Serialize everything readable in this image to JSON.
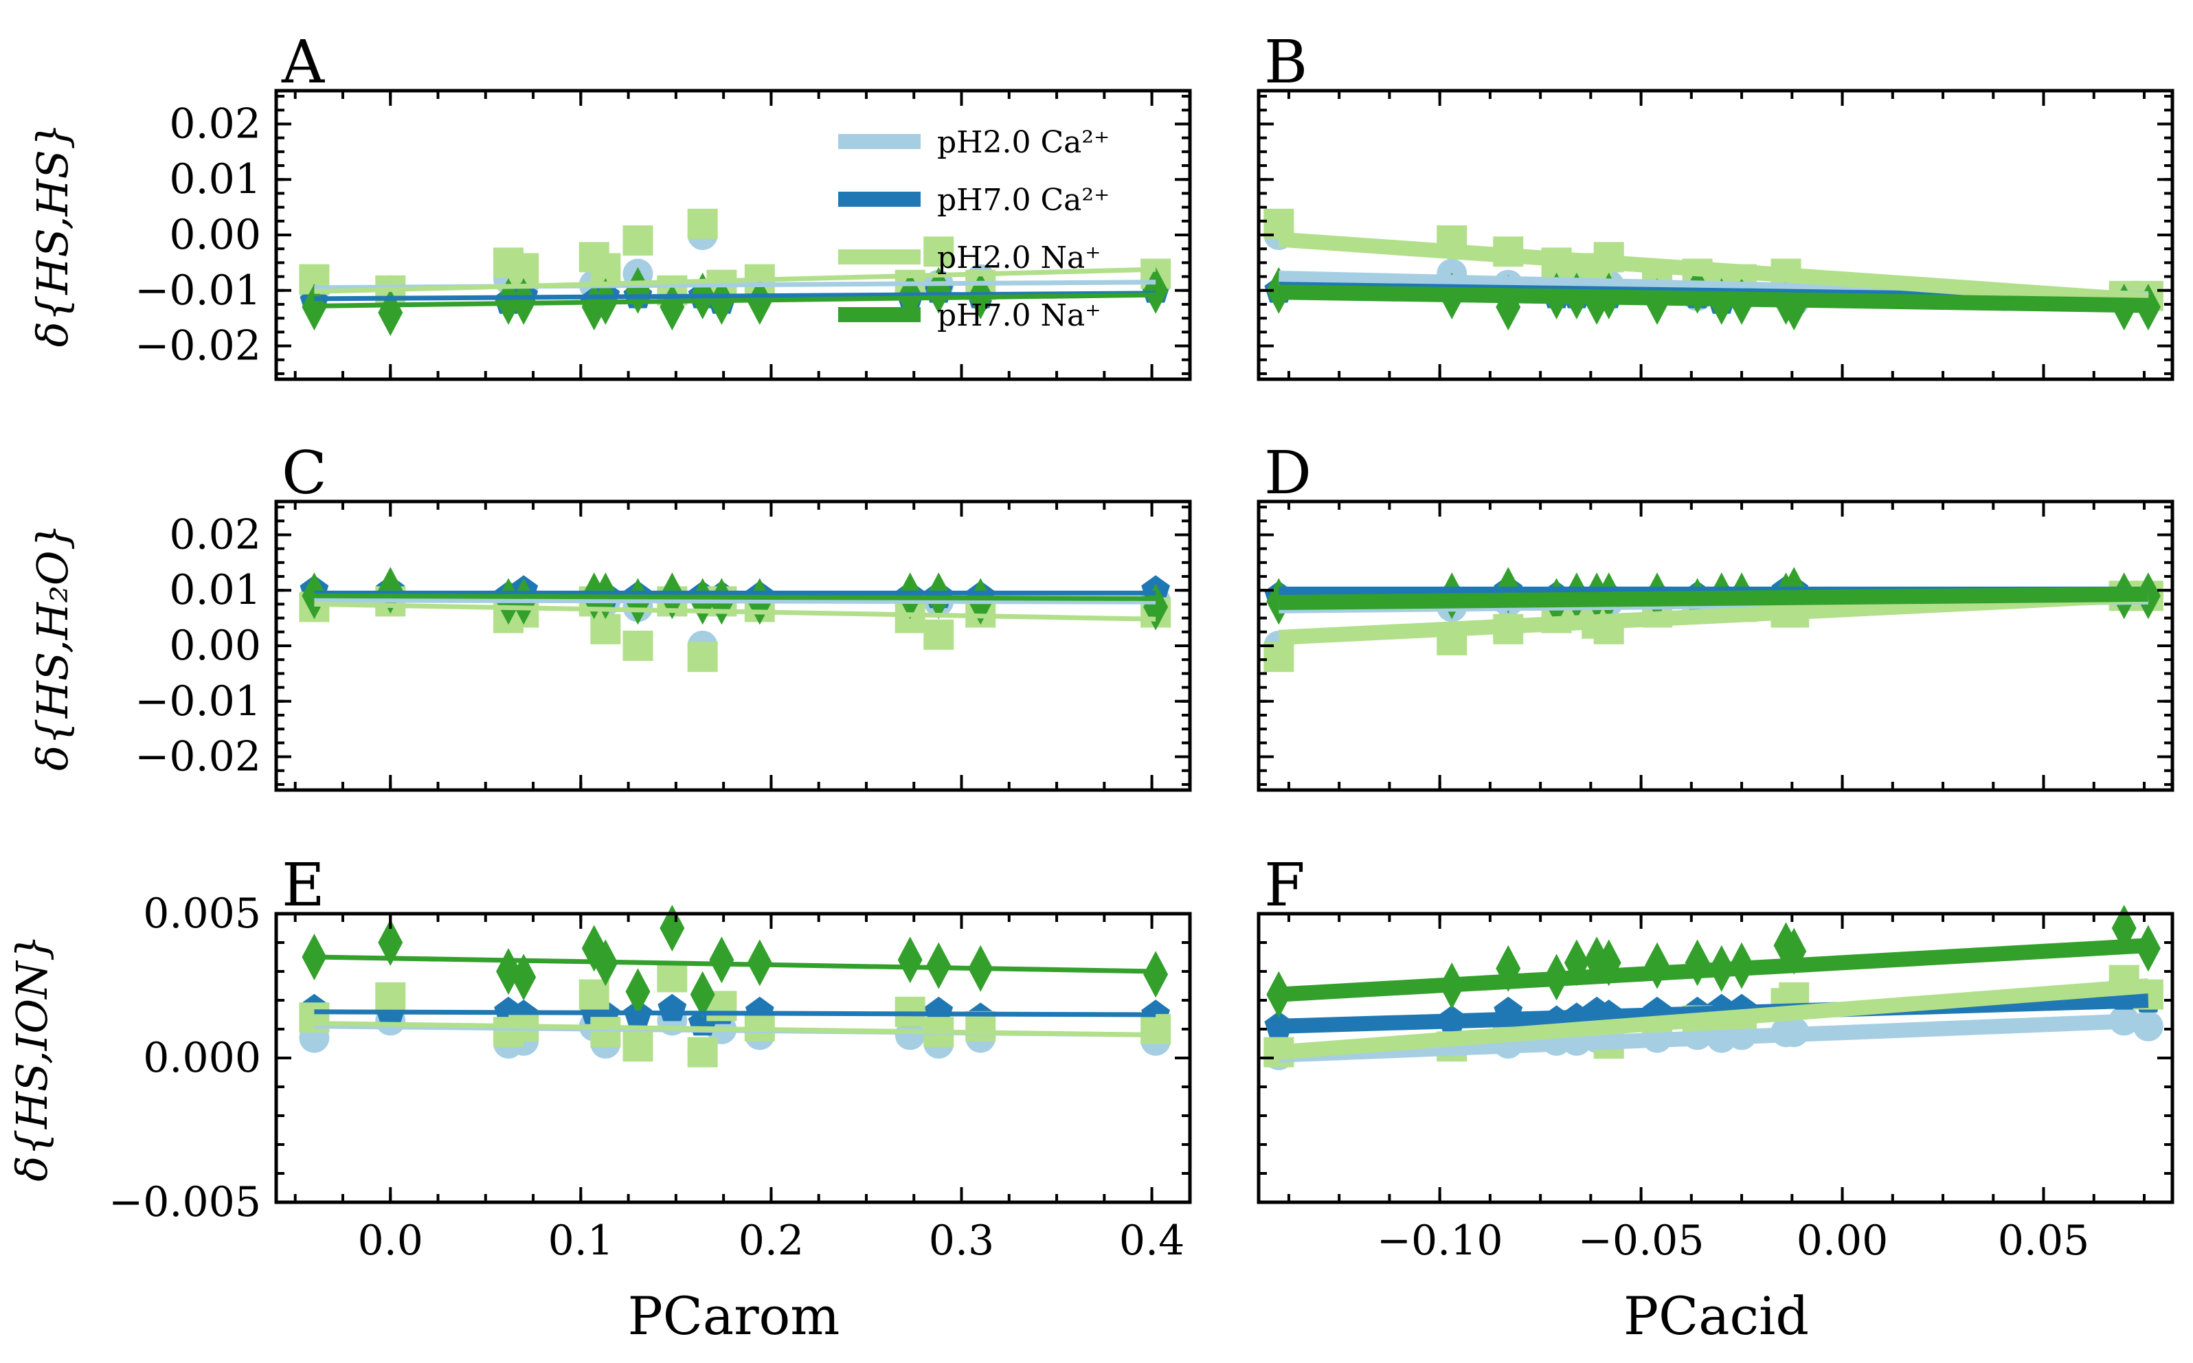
{
  "colors": {
    "pH2_Ca": "#a6cee3",
    "pH7_Ca": "#1f78b4",
    "pH2_Na": "#b2df8a",
    "pH7_Na": "#33a02c"
  },
  "legend": [
    {
      "key": "pH2_Ca",
      "label": "pH2.0 Ca²⁺"
    },
    {
      "key": "pH7_Ca",
      "label": "pH7.0 Ca²⁺"
    },
    {
      "key": "pH2_Na",
      "label": "pH2.0 Na⁺"
    },
    {
      "key": "pH7_Na",
      "label": "pH7.0 Na⁺"
    }
  ],
  "y_labels": {
    "row1": "δ{HS,HS}",
    "row2": "δ{HS,H₂O}",
    "row3": "δ{HS,ION}"
  },
  "x_labels": {
    "left": "PCarom",
    "right": "PCacid"
  },
  "chart_data": [
    {
      "panel": "A",
      "type": "scatter",
      "x_axis": "PC_arom",
      "xlim": [
        -0.06,
        0.42
      ],
      "ylim": [
        -0.026,
        0.026
      ],
      "xticks": [
        "0.0",
        "0.1",
        "0.2",
        "0.3",
        "0.4"
      ],
      "yticks": [
        "0.02",
        "0.01",
        "0.00",
        "−0.01",
        "−0.02"
      ],
      "x": [
        -0.04,
        0.0,
        0.062,
        0.07,
        0.107,
        0.113,
        0.13,
        0.148,
        0.164,
        0.174,
        0.194,
        0.273,
        0.288,
        0.31,
        0.402
      ],
      "series": [
        {
          "name": "pH2.0 Ca²⁺",
          "key": "pH2_Ca",
          "marker": "circle",
          "values": [
            -0.01,
            -0.01,
            -0.008,
            -0.009,
            -0.009,
            -0.006,
            -0.007,
            -0.011,
            0.0,
            -0.009,
            -0.009,
            -0.01,
            -0.009,
            -0.008,
            -0.008
          ],
          "fit": [
            -0.0095,
            -0.0085
          ]
        },
        {
          "name": "pH7.0 Ca²⁺",
          "key": "pH7_Ca",
          "marker": "pentagon",
          "values": [
            -0.012,
            -0.011,
            -0.012,
            -0.011,
            -0.012,
            -0.011,
            -0.011,
            -0.012,
            -0.011,
            -0.012,
            -0.011,
            -0.011,
            -0.01,
            -0.011,
            -0.01
          ],
          "fit": [
            -0.0115,
            -0.0105
          ]
        },
        {
          "name": "pH2.0 Na⁺",
          "key": "pH2_Na",
          "marker": "square",
          "values": [
            -0.008,
            -0.01,
            -0.005,
            -0.006,
            -0.004,
            -0.006,
            -0.001,
            -0.01,
            0.002,
            -0.009,
            -0.008,
            -0.009,
            -0.003,
            -0.009,
            -0.007
          ],
          "fit": [
            -0.0102,
            -0.0062
          ]
        },
        {
          "name": "pH7.0 Na⁺",
          "key": "pH7_Na",
          "marker": "diamond",
          "values": [
            -0.013,
            -0.014,
            -0.012,
            -0.012,
            -0.013,
            -0.012,
            -0.01,
            -0.013,
            -0.011,
            -0.012,
            -0.012,
            -0.011,
            -0.01,
            -0.011,
            -0.01
          ],
          "fit": [
            -0.0128,
            -0.0108
          ]
        }
      ]
    },
    {
      "panel": "B",
      "type": "scatter",
      "x_axis": "PC_acid",
      "xlim": [
        -0.145,
        0.082
      ],
      "ylim": [
        -0.026,
        0.026
      ],
      "xticks": [
        "−0.10",
        "−0.05",
        "0.00",
        "0.05"
      ],
      "yticks": [],
      "x": [
        -0.14,
        -0.097,
        -0.083,
        -0.071,
        -0.066,
        -0.061,
        -0.058,
        -0.046,
        -0.036,
        -0.03,
        -0.025,
        -0.014,
        -0.012,
        0.07,
        0.076
      ],
      "series": [
        {
          "name": "pH2.0 Ca²⁺",
          "key": "pH2_Ca",
          "marker": "circle",
          "values": [
            0.0,
            -0.007,
            -0.009,
            -0.01,
            -0.009,
            -0.01,
            -0.009,
            -0.01,
            -0.011,
            -0.011,
            -0.011,
            -0.011,
            -0.012,
            -0.011,
            -0.011
          ],
          "fit": [
            -0.0078,
            -0.0115
          ]
        },
        {
          "name": "pH7.0 Ca²⁺",
          "key": "pH7_Ca",
          "marker": "pentagon",
          "values": [
            -0.01,
            -0.01,
            -0.01,
            -0.011,
            -0.011,
            -0.011,
            -0.011,
            -0.011,
            -0.011,
            -0.012,
            -0.011,
            -0.011,
            -0.012,
            -0.012,
            -0.012
          ],
          "fit": [
            -0.0098,
            -0.012
          ]
        },
        {
          "name": "pH2.0 Na⁺",
          "key": "pH2_Na",
          "marker": "square",
          "values": [
            0.002,
            -0.001,
            -0.003,
            -0.005,
            -0.006,
            -0.006,
            -0.004,
            -0.008,
            -0.007,
            -0.008,
            -0.008,
            -0.007,
            -0.009,
            -0.011,
            -0.011
          ],
          "fit": [
            -0.0008,
            -0.0118
          ]
        },
        {
          "name": "pH7.0 Na⁺",
          "key": "pH7_Na",
          "marker": "diamond",
          "values": [
            -0.01,
            -0.011,
            -0.013,
            -0.011,
            -0.011,
            -0.012,
            -0.011,
            -0.012,
            -0.01,
            -0.012,
            -0.012,
            -0.012,
            -0.013,
            -0.013,
            -0.013
          ],
          "fit": [
            -0.0103,
            -0.0127
          ]
        }
      ]
    },
    {
      "panel": "C",
      "type": "scatter",
      "x_axis": "PC_arom",
      "xlim": [
        -0.06,
        0.42
      ],
      "ylim": [
        -0.026,
        0.026
      ],
      "xticks": [
        "0.0",
        "0.1",
        "0.2",
        "0.3",
        "0.4"
      ],
      "yticks": [
        "0.02",
        "0.01",
        "0.00",
        "−0.01",
        "−0.02"
      ],
      "x": [
        -0.04,
        0.0,
        0.062,
        0.07,
        0.107,
        0.113,
        0.13,
        0.148,
        0.164,
        0.174,
        0.194,
        0.273,
        0.288,
        0.31,
        0.402
      ],
      "series": [
        {
          "name": "pH2.0 Ca²⁺",
          "key": "pH2_Ca",
          "marker": "circle",
          "values": [
            0.008,
            0.009,
            0.008,
            0.008,
            0.008,
            0.008,
            0.007,
            0.008,
            0.0,
            0.008,
            0.008,
            0.008,
            0.008,
            0.008,
            0.008
          ],
          "fit": [
            0.0082,
            0.0079
          ]
        },
        {
          "name": "pH7.0 Ca²⁺",
          "key": "pH7_Ca",
          "marker": "pentagon",
          "values": [
            0.01,
            0.01,
            0.009,
            0.01,
            0.009,
            0.009,
            0.009,
            0.009,
            0.009,
            0.009,
            0.009,
            0.009,
            0.009,
            0.009,
            0.01
          ],
          "fit": [
            0.0095,
            0.0095
          ]
        },
        {
          "name": "pH2.0 Na⁺",
          "key": "pH2_Na",
          "marker": "square",
          "values": [
            0.007,
            0.008,
            0.005,
            0.006,
            0.008,
            0.003,
            0.0,
            0.008,
            -0.002,
            0.008,
            0.007,
            0.005,
            0.002,
            0.006,
            0.006
          ],
          "fit": [
            0.0075,
            0.0048
          ]
        },
        {
          "name": "pH7.0 Na⁺",
          "key": "pH7_Na",
          "marker": "diamond",
          "values": [
            0.009,
            0.01,
            0.008,
            0.008,
            0.009,
            0.009,
            0.008,
            0.009,
            0.008,
            0.008,
            0.008,
            0.009,
            0.009,
            0.008,
            0.007
          ],
          "fit": [
            0.009,
            0.0085
          ]
        }
      ]
    },
    {
      "panel": "D",
      "type": "scatter",
      "x_axis": "PC_acid",
      "xlim": [
        -0.145,
        0.082
      ],
      "ylim": [
        -0.026,
        0.026
      ],
      "xticks": [
        "−0.10",
        "−0.05",
        "0.00",
        "0.05"
      ],
      "yticks": [],
      "x": [
        -0.14,
        -0.097,
        -0.083,
        -0.071,
        -0.066,
        -0.061,
        -0.058,
        -0.046,
        -0.036,
        -0.03,
        -0.025,
        -0.014,
        -0.012,
        0.07,
        0.076
      ],
      "series": [
        {
          "name": "pH2.0 Ca²⁺",
          "key": "pH2_Ca",
          "marker": "circle",
          "values": [
            0.0,
            0.007,
            0.008,
            0.008,
            0.008,
            0.007,
            0.008,
            0.008,
            0.008,
            0.008,
            0.008,
            0.008,
            0.008,
            0.009,
            0.009
          ],
          "fit": [
            0.0072,
            0.0088
          ]
        },
        {
          "name": "pH7.0 Ca²⁺",
          "key": "pH7_Ca",
          "marker": "pentagon",
          "values": [
            0.009,
            0.009,
            0.01,
            0.009,
            0.009,
            0.009,
            0.009,
            0.009,
            0.009,
            0.009,
            0.009,
            0.01,
            0.01,
            0.009,
            0.009
          ],
          "fit": [
            0.0093,
            0.0093
          ]
        },
        {
          "name": "pH2.0 Na⁺",
          "key": "pH2_Na",
          "marker": "square",
          "values": [
            -0.002,
            0.001,
            0.003,
            0.005,
            0.006,
            0.004,
            0.003,
            0.006,
            0.007,
            0.007,
            0.007,
            0.006,
            0.006,
            0.009,
            0.009
          ],
          "fit": [
            0.0015,
            0.0092
          ]
        },
        {
          "name": "pH7.0 Na⁺",
          "key": "pH7_Na",
          "marker": "diamond",
          "values": [
            0.008,
            0.009,
            0.01,
            0.008,
            0.009,
            0.009,
            0.009,
            0.009,
            0.008,
            0.009,
            0.009,
            0.009,
            0.01,
            0.009,
            0.009
          ],
          "fit": [
            0.0078,
            0.0093
          ]
        }
      ]
    },
    {
      "panel": "E",
      "type": "scatter",
      "x_axis": "PC_arom",
      "xlim": [
        -0.06,
        0.42
      ],
      "ylim": [
        -0.005,
        0.005
      ],
      "xticks": [
        "0.0",
        "0.1",
        "0.2",
        "0.3",
        "0.4"
      ],
      "yticks": [
        "0.005",
        "0.000",
        "−0.005"
      ],
      "x": [
        -0.04,
        0.0,
        0.062,
        0.07,
        0.107,
        0.113,
        0.13,
        0.148,
        0.164,
        0.174,
        0.194,
        0.273,
        0.288,
        0.31,
        0.402
      ],
      "series": [
        {
          "name": "pH2.0 Ca²⁺",
          "key": "pH2_Ca",
          "marker": "circle",
          "values": [
            0.0007,
            0.0013,
            0.0005,
            0.0006,
            0.0011,
            0.0005,
            0.0006,
            0.0013,
            0.0002,
            0.001,
            0.0008,
            0.0008,
            0.0005,
            0.0007,
            0.0006
          ],
          "fit": [
            0.0011,
            0.0008
          ]
        },
        {
          "name": "pH7.0 Ca²⁺",
          "key": "pH7_Ca",
          "marker": "pentagon",
          "values": [
            0.0017,
            0.0015,
            0.0016,
            0.0015,
            0.0016,
            0.0015,
            0.0015,
            0.0017,
            0.0012,
            0.0016,
            0.0016,
            0.0015,
            0.0016,
            0.0014,
            0.0015
          ],
          "fit": [
            0.0016,
            0.0015
          ]
        },
        {
          "name": "pH2.0 Na⁺",
          "key": "pH2_Na",
          "marker": "square",
          "values": [
            0.0014,
            0.0021,
            0.0009,
            0.0011,
            0.0022,
            0.0009,
            0.0004,
            0.0028,
            0.0002,
            0.0018,
            0.0011,
            0.0016,
            0.0009,
            0.0011,
            0.001
          ],
          "fit": [
            0.0012,
            0.0008
          ]
        },
        {
          "name": "pH7.0 Na⁺",
          "key": "pH7_Na",
          "marker": "diamond",
          "values": [
            0.0035,
            0.004,
            0.003,
            0.0028,
            0.0038,
            0.0033,
            0.0023,
            0.0045,
            0.0022,
            0.0034,
            0.0033,
            0.0034,
            0.0032,
            0.0031,
            0.0029
          ],
          "fit": [
            0.0035,
            0.003
          ]
        }
      ]
    },
    {
      "panel": "F",
      "type": "scatter",
      "x_axis": "PC_acid",
      "xlim": [
        -0.145,
        0.082
      ],
      "ylim": [
        -0.005,
        0.005
      ],
      "xticks": [
        "−0.10",
        "−0.05",
        "0.00",
        "0.05"
      ],
      "yticks": [],
      "x": [
        -0.14,
        -0.097,
        -0.083,
        -0.071,
        -0.066,
        -0.061,
        -0.058,
        -0.046,
        -0.036,
        -0.03,
        -0.025,
        -0.014,
        -0.012,
        0.07,
        0.076
      ],
      "series": [
        {
          "name": "pH2.0 Ca²⁺",
          "key": "pH2_Ca",
          "marker": "circle",
          "values": [
            0.0001,
            0.0004,
            0.0005,
            0.0006,
            0.0006,
            0.0007,
            0.0006,
            0.0007,
            0.0008,
            0.0007,
            0.0008,
            0.0009,
            0.0009,
            0.0013,
            0.0011
          ],
          "fit": [
            0.0001,
            0.0013
          ]
        },
        {
          "name": "pH7.0 Ca²⁺",
          "key": "pH7_Ca",
          "marker": "pentagon",
          "values": [
            0.0011,
            0.0013,
            0.0016,
            0.0013,
            0.0014,
            0.0016,
            0.0015,
            0.0016,
            0.0016,
            0.0017,
            0.0017,
            0.0019,
            0.0018,
            0.0021,
            0.002
          ],
          "fit": [
            0.0011,
            0.002
          ]
        },
        {
          "name": "pH2.0 Na⁺",
          "key": "pH2_Na",
          "marker": "square",
          "values": [
            0.0002,
            0.0004,
            0.0008,
            0.0009,
            0.0011,
            0.0009,
            0.0005,
            0.0011,
            0.0013,
            0.0012,
            0.0012,
            0.0019,
            0.0021,
            0.0027,
            0.0022
          ],
          "fit": [
            0.0002,
            0.0025
          ]
        },
        {
          "name": "pH7.0 Na⁺",
          "key": "pH7_Na",
          "marker": "diamond",
          "values": [
            0.0022,
            0.0025,
            0.0031,
            0.0028,
            0.0033,
            0.0034,
            0.0033,
            0.0032,
            0.0033,
            0.0031,
            0.0032,
            0.0039,
            0.0037,
            0.0045,
            0.0038
          ],
          "fit": [
            0.0022,
            0.0039
          ]
        }
      ]
    }
  ]
}
